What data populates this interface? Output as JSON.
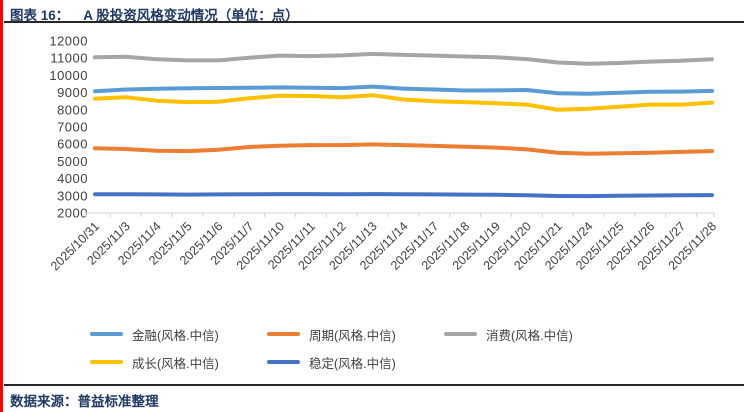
{
  "theme": {
    "accent_red": "#FF0000",
    "title_navy": "#1F3864",
    "axis_text_color": "#404040",
    "axis_line_color": "#D9D9D9",
    "divider_color": "#262626"
  },
  "header": {
    "figure_label": "图表 16：",
    "figure_title": "A 股投资风格变动情况（单位：点）"
  },
  "footer": {
    "source": "数据来源：普益标准整理"
  },
  "chart_data": {
    "type": "line",
    "title": "A 股投资风格变动情况（单位：点）",
    "xlabel": "",
    "ylabel": "",
    "ylim": [
      2000,
      12000
    ],
    "ytick_step": 1000,
    "yticks": [
      12000,
      11000,
      10000,
      9000,
      8000,
      7000,
      6000,
      5000,
      4000,
      3000,
      2000
    ],
    "grid": false,
    "legend_position": "bottom",
    "categories": [
      "2025/10/31",
      "2025/11/3",
      "2025/11/4",
      "2025/11/5",
      "2025/11/6",
      "2025/11/7",
      "2025/11/10",
      "2025/11/11",
      "2025/11/12",
      "2025/11/13",
      "2025/11/14",
      "2025/11/17",
      "2025/11/18",
      "2025/11/19",
      "2025/11/20",
      "2025/11/21",
      "2025/11/24",
      "2025/11/25",
      "2025/11/26",
      "2025/11/27",
      "2025/11/28"
    ],
    "series": [
      {
        "key": "financial",
        "name": "金融(风格.中信)",
        "color": "#5B9BD5",
        "values": [
          9080,
          9180,
          9220,
          9250,
          9270,
          9280,
          9300,
          9280,
          9260,
          9350,
          9230,
          9180,
          9120,
          9130,
          9150,
          8960,
          8930,
          8990,
          9050,
          9060,
          9100
        ]
      },
      {
        "key": "cyclical",
        "name": "周期(风格.中信)",
        "color": "#ED7D31",
        "values": [
          5760,
          5720,
          5620,
          5600,
          5680,
          5840,
          5910,
          5950,
          5950,
          5990,
          5950,
          5900,
          5850,
          5800,
          5700,
          5500,
          5450,
          5470,
          5500,
          5550,
          5600
        ]
      },
      {
        "key": "consumer",
        "name": "消费(风格.中信)",
        "color": "#A5A5A5",
        "values": [
          11050,
          11080,
          10940,
          10870,
          10870,
          11030,
          11150,
          11120,
          11160,
          11250,
          11190,
          11150,
          11100,
          11050,
          10950,
          10750,
          10680,
          10720,
          10800,
          10850,
          10940
        ]
      },
      {
        "key": "growth",
        "name": "成长(风格.中信)",
        "color": "#FFC000",
        "values": [
          8650,
          8730,
          8530,
          8450,
          8470,
          8670,
          8820,
          8800,
          8730,
          8850,
          8600,
          8500,
          8450,
          8380,
          8300,
          8000,
          8060,
          8180,
          8300,
          8300,
          8420
        ]
      },
      {
        "key": "stable",
        "name": "稳定(风格.中信)",
        "color": "#4472C4",
        "values": [
          3090,
          3090,
          3080,
          3070,
          3080,
          3090,
          3100,
          3100,
          3090,
          3100,
          3090,
          3080,
          3070,
          3060,
          3030,
          2990,
          2980,
          3000,
          3020,
          3030,
          3040
        ]
      }
    ]
  }
}
